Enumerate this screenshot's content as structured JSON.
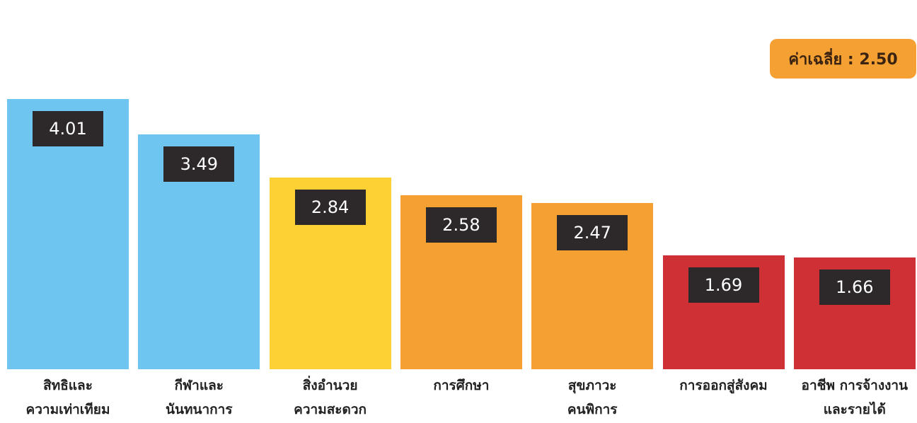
{
  "chart_data": {
    "type": "bar",
    "categories": [
      "สิทธิและ\nความเท่าเทียม",
      "กีฬาและ\nนันทนาการ",
      "สิ่งอำนวย\nความสะดวก",
      "การศึกษา",
      "สุขภาวะ\nคนพิการ",
      "การออกสู่สังคม",
      "อาชีพ การจ้างงาน\nและรายได้"
    ],
    "values": [
      4.01,
      3.49,
      2.84,
      2.58,
      2.47,
      1.69,
      1.66
    ],
    "value_labels": [
      "4.01",
      "3.49",
      "2.84",
      "2.58",
      "2.47",
      "1.69",
      "1.66"
    ],
    "colors": [
      "#6ec6f0",
      "#6ec6f0",
      "#fdd033",
      "#f5a033",
      "#f5a033",
      "#cf3035",
      "#cf3035"
    ],
    "annotation": "ค่าเฉลี่ย : 2.50"
  }
}
